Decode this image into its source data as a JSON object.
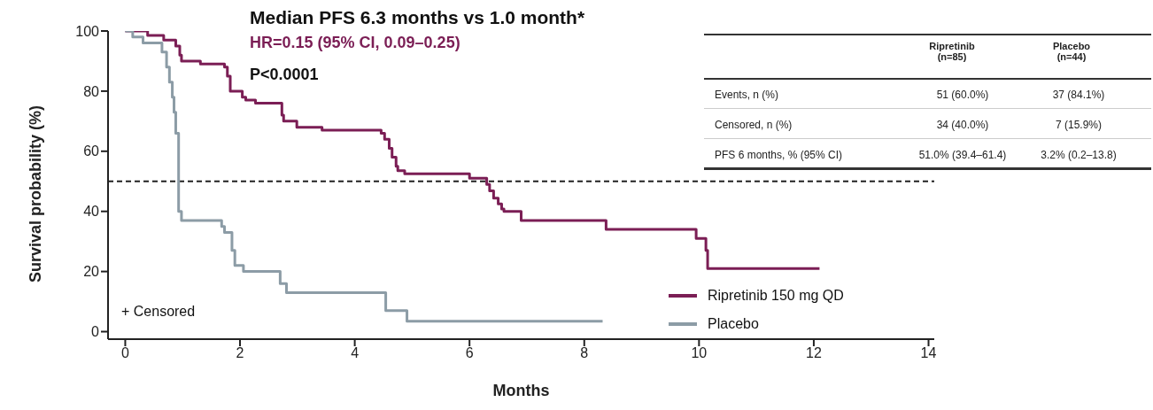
{
  "chart_data": {
    "type": "step",
    "title": "Median PFS 6.3 months vs 1.0 month*",
    "subtitle": "HR=0.15 (95% CI, 0.09–0.25)",
    "xlabel": "Months",
    "ylabel": "Survival probability (%)",
    "annotations": [
      "P<0.0001",
      "+ Censored",
      "Ripretinib (n=85)",
      "Placebo (n=44)",
      "Events, n (%)",
      "51 (60.0%)",
      "37 (84.1%)",
      "Censored, n (%)",
      "34 (40.0%)",
      "7 (15.9%)",
      "PFS 6 months, % (95% CI)",
      "51.0% (39.4–61.4)",
      "3.2% (0.2–13.8)"
    ],
    "series": [
      {
        "name": "Ripretinib 150 mg QD",
        "color": "#7b1e55",
        "x": [
          0,
          0.39,
          0.67,
          0.88,
          0.95,
          0.98,
          1.31,
          1.73,
          1.78,
          1.83,
          2.04,
          2.1,
          2.27,
          2.73,
          2.76,
          2.99,
          3.43,
          4.46,
          4.52,
          4.6,
          4.65,
          4.72,
          4.75,
          4.87,
          6.0,
          6.3,
          6.35,
          6.42,
          6.5,
          6.56,
          6.6,
          6.9,
          8.38,
          9.95,
          10.12,
          10.15,
          12.1
        ],
        "values": [
          100,
          98.5,
          97,
          95,
          92,
          90,
          89,
          88,
          85,
          80,
          78,
          77,
          76,
          72,
          70,
          68,
          67,
          66,
          64,
          61,
          58,
          55,
          53.5,
          52.5,
          51,
          49,
          46.8,
          44.4,
          42.5,
          40.8,
          40,
          37,
          34,
          31,
          27,
          21,
          21
        ]
      },
      {
        "name": "Placebo",
        "color": "#8c9ca6",
        "x": [
          0,
          0.13,
          0.31,
          0.64,
          0.72,
          0.77,
          0.82,
          0.85,
          0.88,
          0.93,
          0.98,
          1.68,
          1.73,
          1.86,
          1.91,
          2.06,
          2.7,
          2.81,
          4.54,
          4.91,
          8.32
        ],
        "values": [
          100,
          98,
          96,
          93,
          88,
          83,
          78,
          73,
          66,
          40,
          37,
          35,
          33,
          27,
          22,
          20,
          16,
          13,
          7,
          3.5,
          3.5
        ]
      }
    ],
    "xlim": [
      -0.3,
      14.1
    ],
    "xticks": [
      0,
      2,
      4,
      6,
      8,
      10,
      12,
      14
    ],
    "ylim": [
      -2.5,
      100
    ],
    "yticks": [
      0,
      20,
      40,
      60,
      80,
      100
    ],
    "ref_lines": [
      {
        "axis": "y",
        "value": 50,
        "line_style": "dashed",
        "color": "#222222"
      }
    ],
    "grid": false,
    "legend": "bottom right",
    "marker": "none",
    "line_style": "solid"
  }
}
